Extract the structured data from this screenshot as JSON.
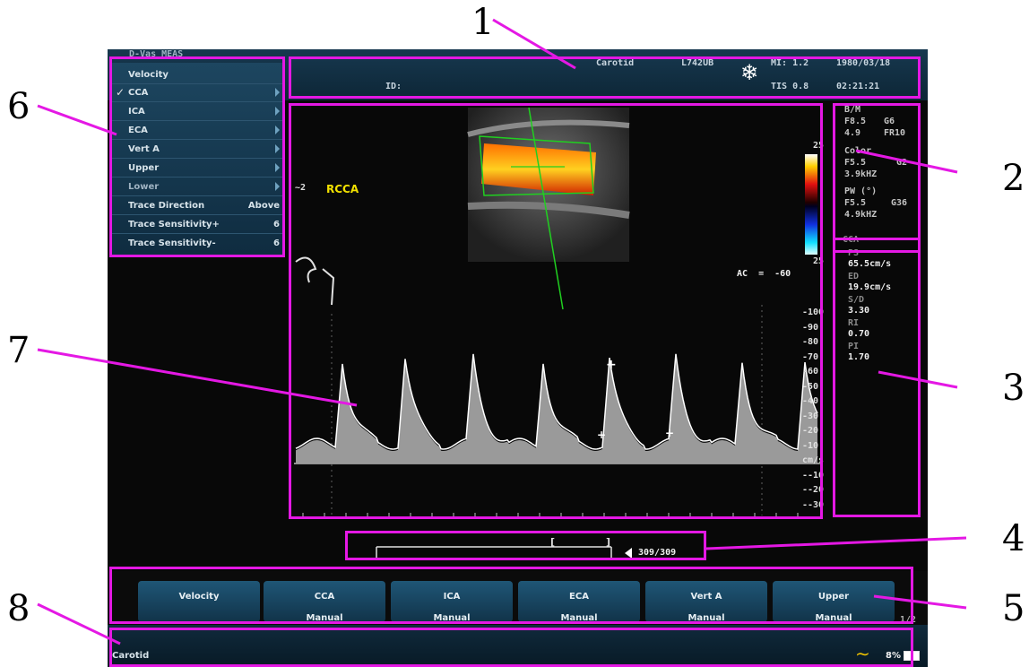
{
  "header": {
    "mode_label": "D-Vas MEAS",
    "exam": "Carotid",
    "probe": "L742UB",
    "mi": "MI: 1.2",
    "date": "1980/03/18",
    "id_label": "ID:",
    "tis": "TIS 0.8",
    "time": "02:21:21"
  },
  "menu": {
    "title": "Velocity",
    "items": [
      {
        "label": "CCA",
        "checked": true,
        "arrow": true
      },
      {
        "label": "ICA",
        "arrow": true
      },
      {
        "label": "ECA",
        "arrow": true
      },
      {
        "label": "Vert  A",
        "arrow": true
      },
      {
        "label": "Upper",
        "arrow": true
      },
      {
        "label": "Lower",
        "arrow": true
      },
      {
        "label": "Trace  Direction",
        "value": "Above"
      },
      {
        "label": "Trace  Sensitivity+",
        "value": "6"
      },
      {
        "label": "Trace  Sensitivity-",
        "value": "6"
      }
    ]
  },
  "image": {
    "vessel_label": "RCCA",
    "side_mark": "~2",
    "angle_text": "AC  =  -60",
    "color_scale_top": "25",
    "color_scale_bottom": "25",
    "scale_labels": [
      "-100",
      "-90",
      "-80",
      "-70",
      "-60",
      "-50",
      "-40",
      "-30",
      "-20",
      "-10",
      "cm/s",
      "--10",
      "--20",
      "--30"
    ]
  },
  "params": {
    "bm_title": "B/M",
    "bm_freq": "F8.5",
    "bm_gain": "G6",
    "bm_depth": "4.9",
    "bm_fr": "FR10",
    "color_title": "Color",
    "color_freq": "F5.5",
    "color_gain": "G2",
    "color_prf": "3.9kHZ",
    "pw_title": "PW (°)",
    "pw_freq": "F5.5",
    "pw_gain": "G36",
    "pw_prf": "4.9kHZ"
  },
  "measurements": {
    "title": "CCA",
    "ps_label": "PS",
    "ps_value": "65.5cm/s",
    "ed_label": "ED",
    "ed_value": "19.9cm/s",
    "sd_label": "S/D",
    "sd_value": "3.30",
    "ri_label": "RI",
    "ri_value": "0.70",
    "pi_label": "PI",
    "pi_value": "1.70"
  },
  "cine": {
    "frame": "309/309"
  },
  "softkeys": [
    {
      "line1": "Velocity",
      "line2": ""
    },
    {
      "line1": "CCA",
      "line2": "Manual"
    },
    {
      "line1": "ICA",
      "line2": "Manual"
    },
    {
      "line1": "ECA",
      "line2": "Manual"
    },
    {
      "line1": "Vert  A",
      "line2": "Manual"
    },
    {
      "line1": "Upper",
      "line2": "Manual"
    }
  ],
  "softkey_page": "1/2",
  "status": {
    "exam": "Carotid",
    "battery": "8%"
  },
  "callouts": [
    "1",
    "2",
    "3",
    "4",
    "5",
    "6",
    "7",
    "8"
  ],
  "colors": {
    "accent": "#e418e4",
    "panel": "#17384f",
    "label_yellow": "#f2e100"
  }
}
